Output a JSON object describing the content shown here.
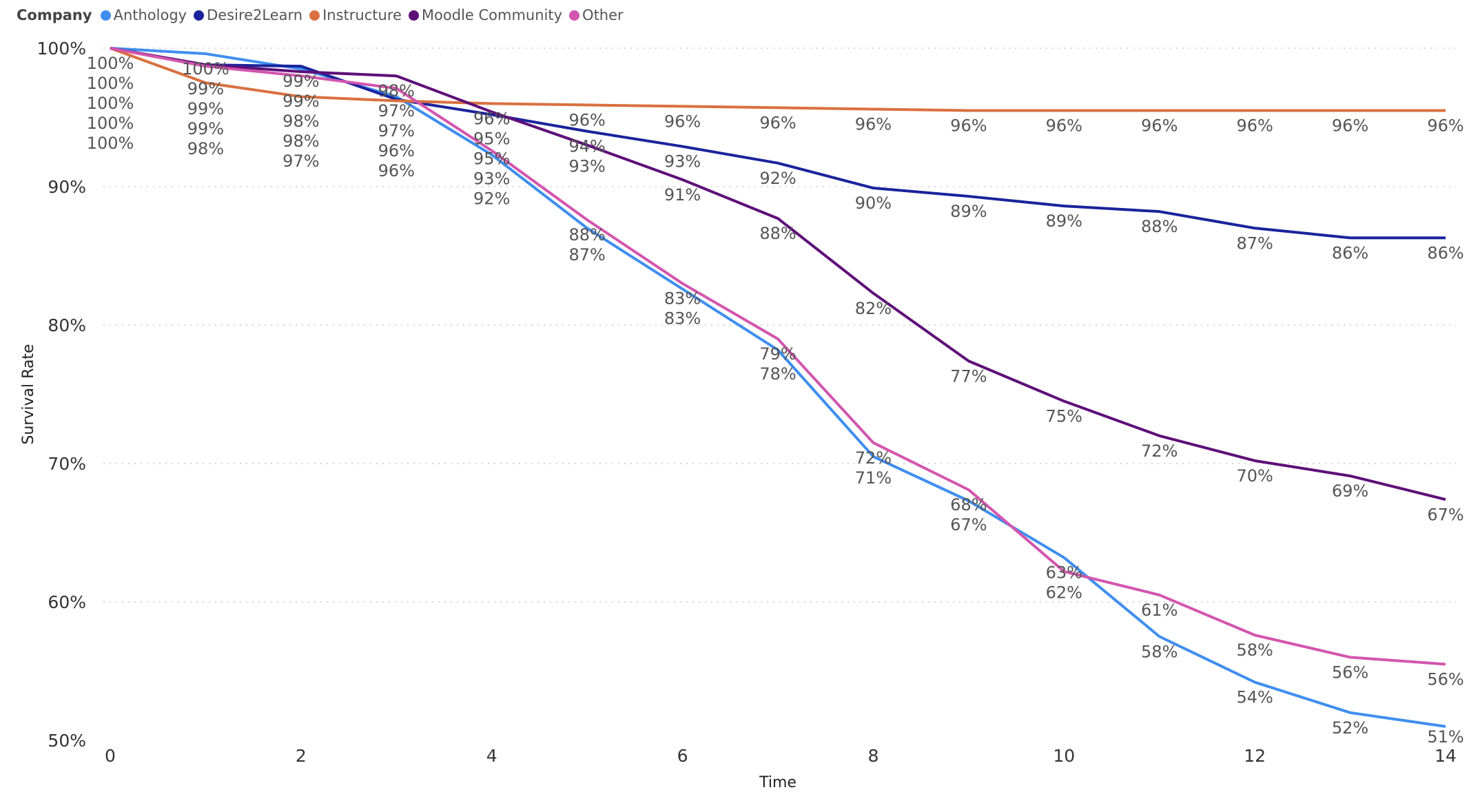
{
  "chart_data": {
    "type": "line",
    "legend_title": "Company",
    "legend_position": "top-left",
    "xlabel": "Time",
    "ylabel": "Survival Rate",
    "x": [
      0,
      1,
      2,
      3,
      4,
      5,
      6,
      7,
      8,
      9,
      10,
      11,
      12,
      13,
      14
    ],
    "xticks": [
      "0",
      "2",
      "4",
      "6",
      "8",
      "10",
      "12",
      "14"
    ],
    "yticks": [
      "50%",
      "60%",
      "70%",
      "80%",
      "90%",
      "100%"
    ],
    "ylim": [
      50,
      100
    ],
    "xlim": [
      0,
      14
    ],
    "grid": "horizontal dotted",
    "series": [
      {
        "name": "Anthology",
        "color": "#3f8ef0",
        "values": [
          100,
          99.6,
          98.5,
          96.5,
          92.3,
          87.0,
          82.6,
          78.2,
          70.5,
          67.3,
          63.2,
          57.5,
          54.2,
          52.0,
          51.0
        ]
      },
      {
        "name": "Desire2Learn",
        "color": "#1a239c",
        "values": [
          100,
          98.8,
          98.7,
          96.3,
          95.2,
          94.0,
          92.9,
          91.7,
          89.9,
          89.3,
          88.6,
          88.2,
          87.0,
          86.3,
          86.3
        ]
      },
      {
        "name": "Instructure",
        "color": "#d9703f",
        "values": [
          100,
          97.5,
          96.5,
          96.2,
          96.0,
          95.9,
          95.8,
          95.7,
          95.6,
          95.5,
          95.5,
          95.5,
          95.5,
          95.5,
          95.5
        ]
      },
      {
        "name": "Moodle Community",
        "color": "#5e0f78",
        "values": [
          100,
          98.8,
          98.3,
          98.0,
          95.4,
          93.0,
          90.5,
          87.7,
          82.3,
          77.4,
          74.5,
          72.0,
          70.2,
          69.1,
          67.4
        ]
      },
      {
        "name": "Other",
        "color": "#d355ae",
        "values": [
          100,
          98.7,
          98.0,
          97.1,
          92.6,
          87.6,
          83.0,
          79.0,
          71.5,
          68.1,
          62.2,
          60.5,
          57.6,
          56.0,
          55.5
        ]
      }
    ]
  }
}
